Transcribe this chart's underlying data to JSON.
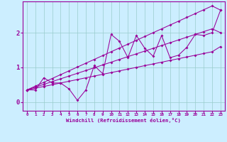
{
  "x": [
    0,
    1,
    2,
    3,
    4,
    5,
    6,
    7,
    8,
    9,
    10,
    11,
    12,
    13,
    14,
    15,
    16,
    17,
    18,
    19,
    20,
    21,
    22,
    23
  ],
  "y_zigzag": [
    0.35,
    0.35,
    0.7,
    0.55,
    0.55,
    0.38,
    0.05,
    0.35,
    1.05,
    0.82,
    1.95,
    1.75,
    1.28,
    1.92,
    1.55,
    1.32,
    1.92,
    1.28,
    1.35,
    1.58,
    1.95,
    1.92,
    2.0,
    2.65
  ],
  "y_line_upper": [
    0.35,
    0.46,
    0.57,
    0.68,
    0.79,
    0.9,
    1.01,
    1.12,
    1.23,
    1.34,
    1.45,
    1.56,
    1.67,
    1.78,
    1.89,
    2.0,
    2.11,
    2.22,
    2.33,
    2.44,
    2.55,
    2.66,
    2.77,
    2.65
  ],
  "y_line_mid": [
    0.35,
    0.43,
    0.51,
    0.59,
    0.67,
    0.75,
    0.83,
    0.91,
    0.99,
    1.07,
    1.15,
    1.23,
    1.31,
    1.39,
    1.47,
    1.55,
    1.63,
    1.71,
    1.79,
    1.87,
    1.95,
    2.03,
    2.11,
    2.0
  ],
  "y_line_lower": [
    0.35,
    0.4,
    0.45,
    0.5,
    0.55,
    0.6,
    0.65,
    0.7,
    0.75,
    0.8,
    0.85,
    0.9,
    0.95,
    1.0,
    1.05,
    1.1,
    1.15,
    1.2,
    1.25,
    1.3,
    1.35,
    1.4,
    1.45,
    1.6
  ],
  "bg_color": "#cceeff",
  "line_color": "#990099",
  "grid_color": "#99cccc",
  "xlabel": "Windchill (Refroidissement éolien,°C)",
  "ylim": [
    -0.25,
    2.9
  ],
  "xlim": [
    -0.5,
    23.5
  ],
  "yticks": [
    0,
    1,
    2
  ],
  "xticks": [
    0,
    1,
    2,
    3,
    4,
    5,
    6,
    7,
    8,
    9,
    10,
    11,
    12,
    13,
    14,
    15,
    16,
    17,
    18,
    19,
    20,
    21,
    22,
    23
  ]
}
